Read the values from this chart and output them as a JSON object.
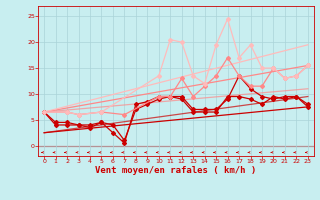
{
  "bg_color": "#c8eef0",
  "grid_color": "#aad4d8",
  "line_color_dark": "#cc0000",
  "xlabel": "Vent moyen/en rafales ( km/h )",
  "xlabel_color": "#cc0000",
  "xlabel_fontsize": 6.5,
  "ytick_labels": [
    "0",
    "5",
    "10",
    "15",
    "20",
    "25"
  ],
  "ytick_vals": [
    0,
    5,
    10,
    15,
    20,
    25
  ],
  "xtick_vals": [
    0,
    1,
    2,
    3,
    4,
    5,
    6,
    7,
    8,
    9,
    10,
    11,
    12,
    13,
    14,
    15,
    16,
    17,
    18,
    19,
    20,
    21,
    22,
    23
  ],
  "xlim": [
    -0.5,
    23.5
  ],
  "ylim": [
    -2,
    27
  ],
  "series": [
    {
      "x": [
        0,
        1,
        2,
        3,
        4,
        5,
        6,
        7,
        8,
        9,
        10,
        11,
        12,
        13,
        14,
        15,
        16,
        17,
        18,
        19,
        20,
        21,
        22,
        23
      ],
      "y": [
        6.5,
        4.0,
        4.0,
        4.0,
        4.0,
        4.5,
        4.0,
        1.0,
        7.0,
        8.0,
        9.0,
        9.5,
        9.0,
        6.5,
        6.5,
        6.5,
        9.5,
        9.5,
        9.0,
        8.0,
        9.5,
        9.0,
        9.5,
        7.5
      ],
      "color": "#cc0000",
      "lw": 0.9,
      "marker": "D",
      "ms": 2.0,
      "alpha": 1.0
    },
    {
      "x": [
        0,
        1,
        2,
        3,
        4,
        5,
        6,
        7,
        8,
        9,
        10,
        11,
        12,
        13,
        14,
        15,
        16,
        17,
        18,
        19,
        20,
        21,
        22,
        23
      ],
      "y": [
        6.5,
        4.5,
        4.5,
        4.0,
        3.5,
        4.5,
        2.5,
        0.5,
        8.0,
        8.5,
        9.5,
        9.5,
        9.5,
        7.0,
        7.0,
        7.0,
        9.0,
        13.5,
        11.0,
        9.5,
        9.0,
        9.5,
        9.5,
        8.0
      ],
      "color": "#cc0000",
      "lw": 0.9,
      "marker": "D",
      "ms": 2.0,
      "alpha": 1.0
    },
    {
      "x": [
        0,
        2,
        3,
        5,
        7,
        10,
        11,
        12,
        13,
        14,
        15,
        16,
        17,
        18,
        19,
        20,
        21,
        22,
        23
      ],
      "y": [
        6.5,
        6.5,
        6.0,
        6.5,
        6.0,
        9.5,
        9.5,
        13.0,
        9.5,
        11.5,
        13.5,
        17.0,
        13.5,
        11.5,
        11.5,
        15.0,
        13.0,
        13.5,
        15.5
      ],
      "color": "#ff8888",
      "lw": 0.9,
      "marker": "D",
      "ms": 2.0,
      "alpha": 1.0
    },
    {
      "x": [
        0,
        2,
        3,
        5,
        10,
        11,
        12,
        13,
        14,
        15,
        16,
        17,
        18,
        19,
        20,
        21,
        22,
        23
      ],
      "y": [
        6.5,
        6.5,
        6.0,
        6.5,
        13.5,
        20.5,
        20.0,
        13.5,
        12.0,
        19.5,
        24.5,
        17.0,
        19.5,
        15.0,
        15.0,
        13.0,
        13.5,
        15.5
      ],
      "color": "#ffbbbb",
      "lw": 0.9,
      "marker": "D",
      "ms": 2.0,
      "alpha": 1.0
    },
    {
      "x": [
        0,
        23
      ],
      "y": [
        2.5,
        7.5
      ],
      "color": "#cc0000",
      "lw": 0.9,
      "marker": null,
      "ms": 0,
      "alpha": 1.0
    },
    {
      "x": [
        0,
        23
      ],
      "y": [
        6.5,
        15.5
      ],
      "color": "#ff8888",
      "lw": 0.9,
      "marker": null,
      "ms": 0,
      "alpha": 1.0
    },
    {
      "x": [
        0,
        23
      ],
      "y": [
        6.5,
        19.5
      ],
      "color": "#ffbbbb",
      "lw": 0.9,
      "marker": null,
      "ms": 0,
      "alpha": 1.0
    },
    {
      "x": [
        0,
        23
      ],
      "y": [
        6.5,
        11.0
      ],
      "color": "#ff8888",
      "lw": 0.9,
      "marker": null,
      "ms": 0,
      "alpha": 0.7
    },
    {
      "x": [
        0,
        23
      ],
      "y": [
        2.5,
        9.5
      ],
      "color": "#cc0000",
      "lw": 0.9,
      "marker": null,
      "ms": 0,
      "alpha": 0.7
    }
  ]
}
